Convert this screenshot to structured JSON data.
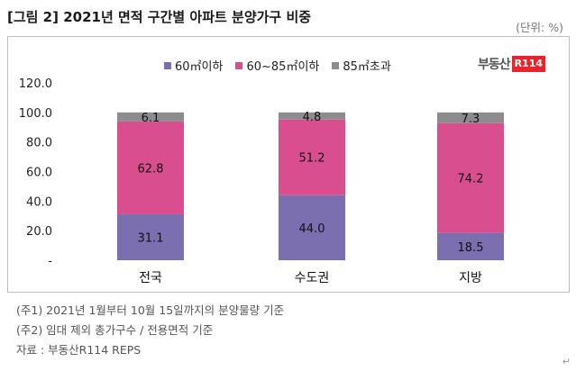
{
  "title": "[그림 2] 2021년 면적 구간별 아파트 분양가구 비중",
  "unit_label": "(단위: %)",
  "logo_text": "부동산R114",
  "logo_main": "부동산",
  "logo_box": "R114",
  "notes": [
    "(주1) 2021년 1월부터 10월 15일까지의 분양물량 기준",
    "(주2) 임대 제외 총가구수 / 전용면적 기준",
    "자료 : 부동산R114 REPS"
  ],
  "corner_mark": "↵",
  "chart_data": {
    "type": "bar",
    "stacked": true,
    "categories": [
      "전국",
      "수도권",
      "지방"
    ],
    "series": [
      {
        "name": "60㎡이하",
        "color": "#7b6fb0",
        "values": [
          31.1,
          44.0,
          18.5
        ]
      },
      {
        "name": "60~85㎡이하",
        "color": "#d94e8f",
        "values": [
          62.8,
          51.2,
          74.2
        ]
      },
      {
        "name": "85㎡초과",
        "color": "#8c8c8c",
        "values": [
          6.1,
          4.8,
          7.3
        ]
      }
    ],
    "yticks": [
      "-",
      "20.0",
      "40.0",
      "60.0",
      "80.0",
      "100.0",
      "120.0"
    ],
    "ylim": [
      0,
      120
    ],
    "legend_position": "top",
    "grid": false
  }
}
